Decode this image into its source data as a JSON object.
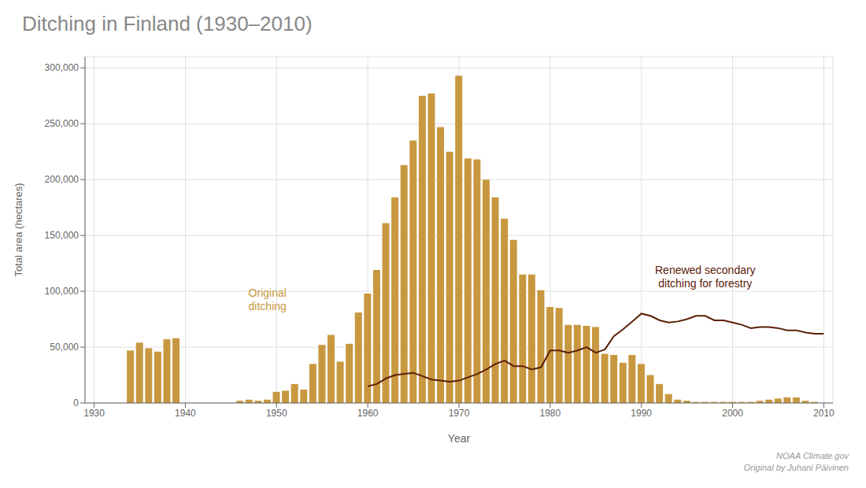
{
  "chart_data": {
    "type": "bar",
    "title": "Ditching in Finland (1930–2010)",
    "x_label": "Year",
    "y_label": "Total area (hectares)",
    "xlim": [
      1929,
      2011
    ],
    "xticks": [
      1930,
      1940,
      1950,
      1960,
      1970,
      1980,
      1990,
      2000,
      2010
    ],
    "ylim": [
      0,
      310000
    ],
    "yticks": [
      0,
      {
        "value": 50000,
        "label": "50,000"
      },
      {
        "value": 100000,
        "label": "100,000"
      },
      {
        "value": 150000,
        "label": "150,000"
      },
      {
        "value": 200000,
        "label": "200,000"
      },
      {
        "value": 250000,
        "label": "250,000"
      },
      {
        "value": 300000,
        "label": "300,000"
      }
    ],
    "grid": true,
    "series": [
      {
        "type": "bar",
        "color": "#c89840",
        "x": [
          1930,
          1931,
          1932,
          1933,
          1934,
          1935,
          1936,
          1937,
          1938,
          1939,
          1940,
          1941,
          1942,
          1943,
          1944,
          1945,
          1946,
          1947,
          1948,
          1949,
          1950,
          1951,
          1952,
          1953,
          1954,
          1955,
          1956,
          1957,
          1958,
          1959,
          1960,
          1961,
          1962,
          1963,
          1964,
          1965,
          1966,
          1967,
          1968,
          1969,
          1970,
          1971,
          1972,
          1973,
          1974,
          1975,
          1976,
          1977,
          1978,
          1979,
          1980,
          1981,
          1982,
          1983,
          1984,
          1985,
          1986,
          1987,
          1988,
          1989,
          1990,
          1991,
          1992,
          1993,
          1994,
          1995,
          1996,
          1997,
          1998,
          1999,
          2000,
          2001,
          2002,
          2003,
          2004,
          2005,
          2006,
          2007,
          2008,
          2009,
          2010
        ],
        "values": [
          0,
          0,
          0,
          0,
          47000,
          54000,
          49000,
          46000,
          57000,
          58000,
          0,
          0,
          0,
          0,
          0,
          0,
          2000,
          3000,
          2000,
          3000,
          10000,
          11000,
          17000,
          12000,
          35000,
          52000,
          61000,
          37000,
          53000,
          81000,
          98000,
          119000,
          161000,
          184000,
          213000,
          235000,
          275000,
          277000,
          247000,
          225000,
          293000,
          219000,
          218000,
          200000,
          184000,
          165000,
          146000,
          115000,
          115000,
          101000,
          86000,
          85000,
          70000,
          70000,
          69000,
          68000,
          44000,
          43000,
          36000,
          43000,
          35000,
          25000,
          17000,
          8000,
          3000,
          2000,
          1000,
          1000,
          1000,
          1000,
          1000,
          1000,
          1000,
          2000,
          3000,
          4000,
          5000,
          5000,
          2000,
          1000,
          0
        ]
      },
      {
        "type": "line",
        "color": "#5c2008",
        "x": [
          1960,
          1961,
          1962,
          1963,
          1964,
          1965,
          1966,
          1967,
          1968,
          1969,
          1970,
          1971,
          1972,
          1973,
          1974,
          1975,
          1976,
          1977,
          1978,
          1979,
          1980,
          1981,
          1982,
          1983,
          1984,
          1985,
          1986,
          1987,
          1988,
          1989,
          1990,
          1991,
          1992,
          1993,
          1994,
          1995,
          1996,
          1997,
          1998,
          1999,
          2000,
          2001,
          2002,
          2003,
          2004,
          2005,
          2006,
          2007,
          2008,
          2009,
          2010
        ],
        "values": [
          15000,
          17000,
          22000,
          25000,
          26000,
          27000,
          24000,
          21000,
          20000,
          19000,
          20000,
          23000,
          26000,
          30000,
          35000,
          38000,
          33000,
          33000,
          30000,
          32000,
          47000,
          47000,
          45000,
          47000,
          50000,
          45000,
          48000,
          60000,
          66000,
          73000,
          80000,
          78000,
          74000,
          72000,
          73000,
          75000,
          78000,
          78000,
          74000,
          74000,
          72000,
          70000,
          67000,
          68000,
          68000,
          67000,
          65000,
          65000,
          63000,
          62000,
          62000
        ]
      }
    ],
    "annotations": [
      {
        "text": "Original\nditching",
        "x": 1949,
        "y": 80000,
        "color": "#c89840"
      },
      {
        "text": "Renewed secondary\nditching for forestry",
        "x": 1997,
        "y": 101000,
        "color": "#5c2008"
      }
    ],
    "source": [
      "NOAA Climate.gov",
      "Original by Juhani Päivinen"
    ]
  }
}
